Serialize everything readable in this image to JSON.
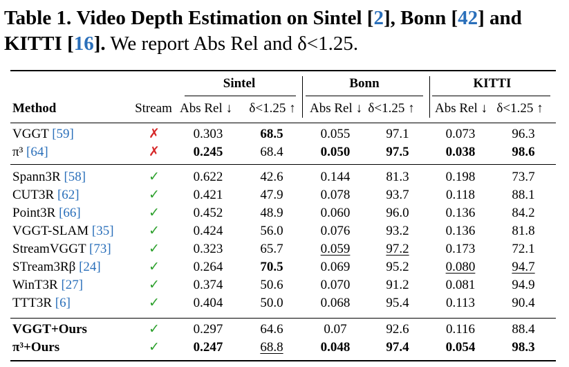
{
  "caption": {
    "label": "Table 1.",
    "title_a": "Video Depth Estimation on Sintel [",
    "ref_a": "2",
    "title_b": "], Bonn [",
    "ref_b": "42",
    "title_c": "] and",
    "title_d": "KITTI [",
    "ref_c": "16",
    "title_e": "].",
    "rest": " We report Abs Rel and δ<1.25."
  },
  "header": {
    "groups": [
      "Sintel",
      "Bonn",
      "KITTI"
    ],
    "method": "Method",
    "stream": "Stream",
    "abs": "Abs Rel ↓",
    "delta": "δ<1.25 ↑"
  },
  "rows": [
    {
      "name": "VGGT",
      "ref": "[59]",
      "stream": "✗",
      "vals": [
        "0.303",
        "68.5",
        "0.055",
        "97.1",
        "0.073",
        "96.3"
      ]
    },
    {
      "name": "π³",
      "ref": "[64]",
      "stream": "✗",
      "vals": [
        "0.245",
        "68.4",
        "0.050",
        "97.5",
        "0.038",
        "98.6"
      ]
    },
    {
      "name": "Spann3R",
      "ref": "[58]",
      "stream": "✓",
      "vals": [
        "0.622",
        "42.6",
        "0.144",
        "81.3",
        "0.198",
        "73.7"
      ]
    },
    {
      "name": "CUT3R",
      "ref": "[62]",
      "stream": "✓",
      "vals": [
        "0.421",
        "47.9",
        "0.078",
        "93.7",
        "0.118",
        "88.1"
      ]
    },
    {
      "name": "Point3R",
      "ref": "[66]",
      "stream": "✓",
      "vals": [
        "0.452",
        "48.9",
        "0.060",
        "96.0",
        "0.136",
        "84.2"
      ]
    },
    {
      "name": "VGGT-SLAM",
      "ref": "[35]",
      "stream": "✓",
      "vals": [
        "0.424",
        "56.0",
        "0.076",
        "93.2",
        "0.136",
        "81.8"
      ]
    },
    {
      "name": "StreamVGGT",
      "ref": "[73]",
      "stream": "✓",
      "vals": [
        "0.323",
        "65.7",
        "0.059",
        "97.2",
        "0.173",
        "72.1"
      ]
    },
    {
      "name": "STream3Rβ",
      "ref": "[24]",
      "stream": "✓",
      "vals": [
        "0.264",
        "70.5",
        "0.069",
        "95.2",
        "0.080",
        "94.7"
      ]
    },
    {
      "name": "WinT3R",
      "ref": "[27]",
      "stream": "✓",
      "vals": [
        "0.374",
        "50.6",
        "0.070",
        "91.2",
        "0.081",
        "94.9"
      ]
    },
    {
      "name": "TTT3R",
      "ref": "[6]",
      "stream": "✓",
      "vals": [
        "0.404",
        "50.0",
        "0.068",
        "95.4",
        "0.113",
        "90.4"
      ]
    },
    {
      "name": "VGGT+Ours",
      "ref": "",
      "stream": "✓",
      "vals": [
        "0.297",
        "64.6",
        "0.07",
        "92.6",
        "0.116",
        "88.4"
      ]
    },
    {
      "name": "π³+Ours",
      "ref": "",
      "stream": "✓",
      "vals": [
        "0.247",
        "68.8",
        "0.048",
        "97.4",
        "0.054",
        "98.3"
      ]
    }
  ]
}
